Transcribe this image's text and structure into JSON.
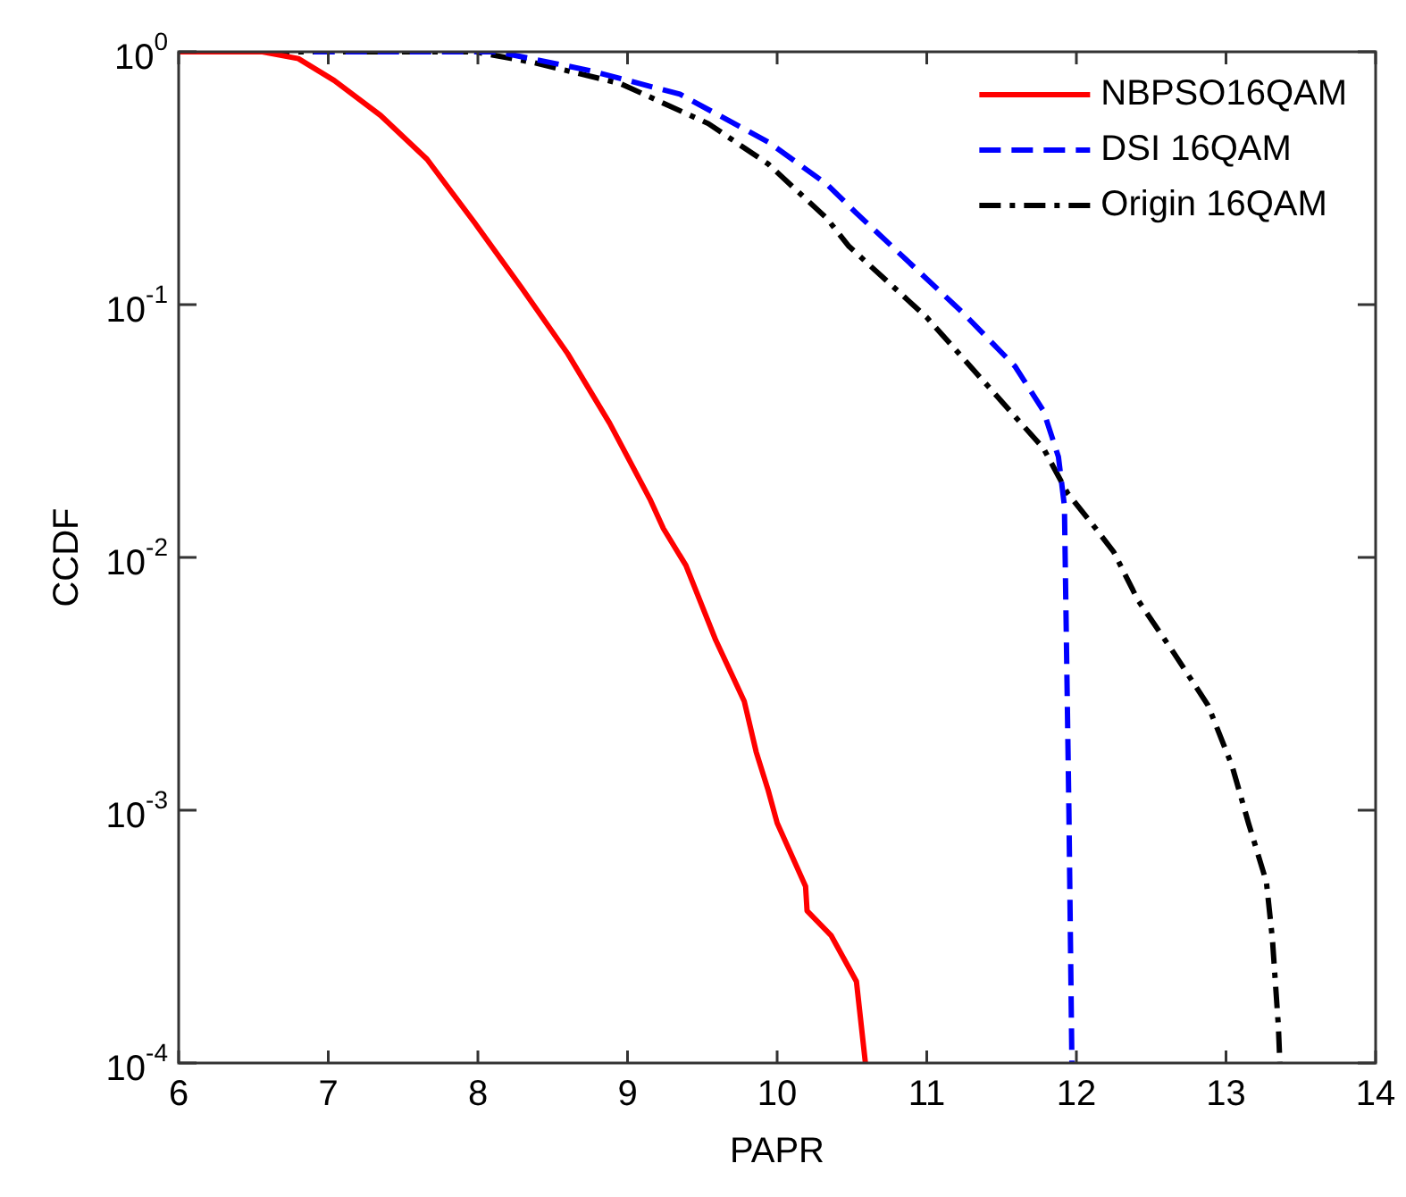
{
  "chart_data": {
    "type": "line",
    "xlabel": "PAPR",
    "ylabel": "CCDF",
    "log": "y",
    "grid": false,
    "legend": "top right",
    "marker": "none",
    "xlim": [
      6,
      14
    ],
    "xticks": [
      6,
      7,
      8,
      9,
      10,
      11,
      12,
      13,
      14
    ],
    "ylim": [
      0.0001,
      1
    ],
    "yticks": [
      {
        "value": 0.0001,
        "label": "10$^{-4}$"
      },
      {
        "value": 0.001,
        "label": "10$^{-3}$"
      },
      {
        "value": 0.01,
        "label": "10$^{-2}$"
      },
      {
        "value": 0.1,
        "label": "10$^{-1}$"
      },
      {
        "value": 1,
        "label": "10$^{0}$"
      }
    ],
    "series": [
      {
        "name": "NBPSO16QAM",
        "color": "#ff0000",
        "line_style": "solid",
        "x": [
          6,
          6.56,
          6.8,
          7.04,
          7.35,
          7.66,
          7.98,
          8.29,
          8.6,
          8.88,
          9.15,
          9.24,
          9.39,
          9.59,
          9.78,
          9.86,
          9.94,
          10.0,
          10.19,
          10.2,
          10.36,
          10.53,
          10.59
        ],
        "values": [
          1,
          1,
          0.94,
          0.77,
          0.56,
          0.376,
          0.21,
          0.117,
          0.064,
          0.034,
          0.017,
          0.013,
          0.0093,
          0.0047,
          0.0027,
          0.0017,
          0.0012,
          0.00089,
          0.0005,
          0.0004,
          0.00032,
          0.00021,
          0.0001
        ]
      },
      {
        "name": "DSI 16QAM",
        "color": "#0000ff",
        "line_style": "dashed",
        "x": [
          6.9,
          8.13,
          8.76,
          9.35,
          9.94,
          10.33,
          10.53,
          10.84,
          11.24,
          11.59,
          11.78,
          11.88,
          11.92,
          11.95,
          11.97
        ],
        "values": [
          1,
          1,
          0.84,
          0.68,
          0.44,
          0.3,
          0.23,
          0.155,
          0.093,
          0.057,
          0.038,
          0.025,
          0.016,
          0.001,
          0.0001
        ]
      },
      {
        "name": "Origin 16QAM",
        "color": "#000000",
        "line_style": "dashdot",
        "x": [
          6,
          7.98,
          8.36,
          8.95,
          9.54,
          9.94,
          10.33,
          10.48,
          11.0,
          11.39,
          11.78,
          11.94,
          12.13,
          12.25,
          12.41,
          12.65,
          12.88,
          13.04,
          13.15,
          13.27,
          13.31,
          13.35,
          13.36
        ],
        "values": [
          1,
          1,
          0.91,
          0.75,
          0.52,
          0.36,
          0.22,
          0.17,
          0.089,
          0.049,
          0.027,
          0.018,
          0.013,
          0.0105,
          0.0068,
          0.0042,
          0.0026,
          0.0015,
          0.00089,
          0.00052,
          0.00031,
          0.00014,
          0.0001
        ]
      }
    ]
  }
}
